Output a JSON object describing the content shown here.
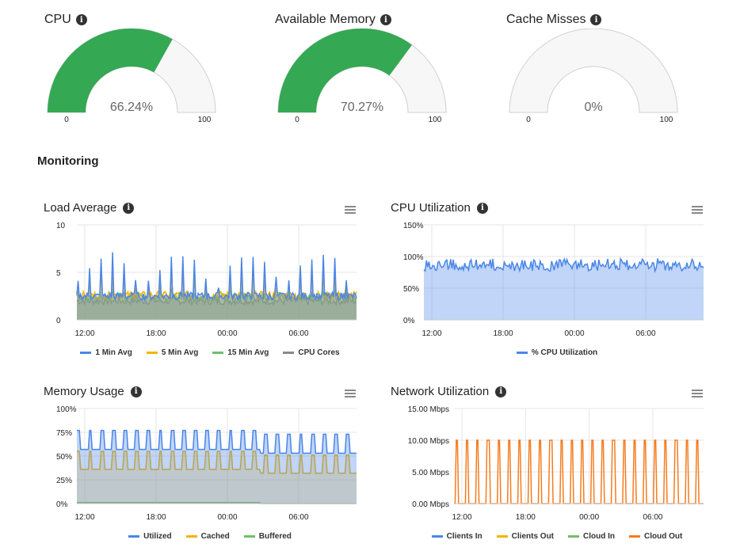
{
  "gauges": [
    {
      "title": "CPU",
      "value": 66.24,
      "value_label": "66.24%",
      "min": "0",
      "max": "100",
      "color": "#34a853"
    },
    {
      "title": "Available Memory",
      "value": 70.27,
      "value_label": "70.27%",
      "min": "0",
      "max": "100",
      "color": "#34a853"
    },
    {
      "title": "Cache Misses",
      "value": 0,
      "value_label": "0%",
      "min": "0",
      "max": "100",
      "color": "#34a853"
    }
  ],
  "section_title": "Monitoring",
  "chart_data": [
    {
      "id": "load",
      "type": "area",
      "title": "Load Average",
      "y_ticks": [
        "10",
        "5",
        "0"
      ],
      "ylim": [
        0,
        10
      ],
      "x_ticks": [
        "12:00",
        "18:00",
        "00:00",
        "06:00"
      ],
      "series": [
        {
          "name": "1 Min Avg",
          "color": "#4a86e8",
          "base": 2.5,
          "peak": 7.0
        },
        {
          "name": "5 Min Avg",
          "color": "#f4b400",
          "base": 2.6,
          "peak": 5.0
        },
        {
          "name": "15 Min Avg",
          "color": "#6dbf6d",
          "base": 2.4,
          "peak": 3.0
        },
        {
          "name": "CPU Cores",
          "color": "#888888",
          "base": 2.0,
          "peak": 2.0
        }
      ]
    },
    {
      "id": "cpu",
      "type": "area",
      "title": "CPU Utilization",
      "y_ticks": [
        "150%",
        "100%",
        "50%",
        "0%"
      ],
      "ylim": [
        0,
        150
      ],
      "x_ticks": [
        "12:00",
        "18:00",
        "00:00",
        "06:00"
      ],
      "series": [
        {
          "name": "% CPU Utilization",
          "color": "#4a86e8",
          "base": 85,
          "peak": 97
        }
      ]
    },
    {
      "id": "mem",
      "type": "area",
      "title": "Memory Usage",
      "y_ticks": [
        "100%",
        "75%",
        "50%",
        "25%",
        "0%"
      ],
      "ylim": [
        0,
        100
      ],
      "x_ticks": [
        "12:00",
        "18:00",
        "00:00",
        "06:00"
      ],
      "series": [
        {
          "name": "Utilized",
          "color": "#4a86e8",
          "base": 57,
          "peak": 77
        },
        {
          "name": "Cached",
          "color": "#f4b400",
          "base": 36,
          "peak": 55
        },
        {
          "name": "Buffered",
          "color": "#6dbf6d",
          "base": 1,
          "peak": 1
        }
      ]
    },
    {
      "id": "net",
      "type": "line",
      "title": "Network Utilization",
      "y_ticks": [
        "15.00 Mbps",
        "10.00 Mbps",
        "5.00 Mbps",
        "0.00 Mbps"
      ],
      "ylim": [
        0,
        15
      ],
      "x_ticks": [
        "12:00",
        "18:00",
        "00:00",
        "06:00"
      ],
      "series": [
        {
          "name": "Clients In",
          "color": "#4a86e8"
        },
        {
          "name": "Clients Out",
          "color": "#f4b400"
        },
        {
          "name": "Cloud In",
          "color": "#6dbf6d"
        },
        {
          "name": "Cloud Out",
          "color": "#f57c20",
          "base": 0,
          "peak": 10
        }
      ]
    }
  ]
}
